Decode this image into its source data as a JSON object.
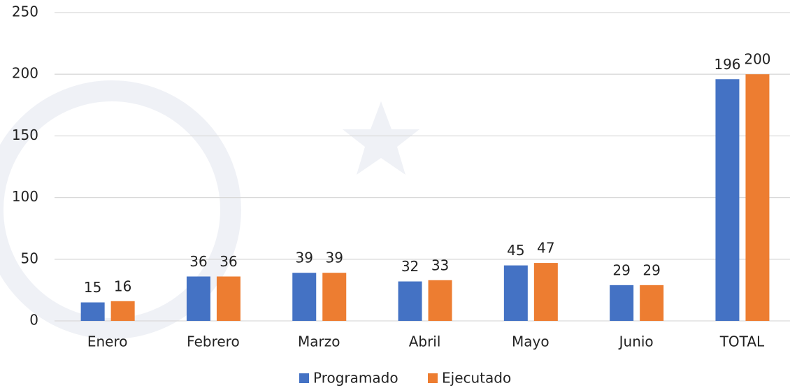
{
  "chart_data": {
    "type": "bar",
    "categories": [
      "Enero",
      "Febrero",
      "Marzo",
      "Abril",
      "Mayo",
      "Junio",
      "TOTAL"
    ],
    "series": [
      {
        "name": "Programado",
        "color": "#4472c4",
        "values": [
          15,
          36,
          39,
          32,
          45,
          29,
          196
        ]
      },
      {
        "name": "Ejecutado",
        "color": "#ed7d31",
        "values": [
          16,
          36,
          39,
          33,
          47,
          29,
          200
        ]
      }
    ],
    "ylim": [
      0,
      250
    ],
    "yticks": [
      0,
      50,
      100,
      150,
      200,
      250
    ],
    "grid": true,
    "legend": "bottom"
  }
}
